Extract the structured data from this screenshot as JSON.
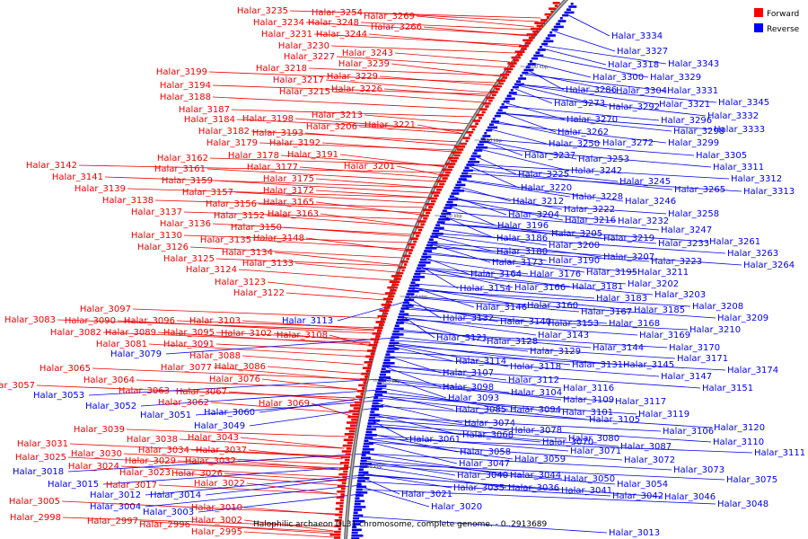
{
  "caption": "Halophilic archaeon DL31 chromosome, complete genome. - 0..2913689",
  "legend": [
    {
      "label": "Forward",
      "color": "#ff0000"
    },
    {
      "label": "Reverse",
      "color": "#0000ff"
    }
  ],
  "colors": {
    "forward": "#ee0000",
    "reverse": "#0000ee",
    "backbone": "#666666"
  },
  "ticks": [
    "2500 kbp",
    "2450 kbp",
    "2400 kbp",
    "2350 kbp",
    "2300 kbp",
    "2250 kbp"
  ],
  "forward_labels": [
    "Halar_3235",
    "Halar_3254",
    "Halar_3269",
    "Halar_3234",
    "Halar_3248",
    "Halar_3266",
    "Halar_3231",
    "Halar_3244",
    "Halar_3230",
    "Halar_3243",
    "Halar_3227",
    "Halar_3239",
    "Halar_3218",
    "Halar_3229",
    "Halar_3199",
    "Halar_3217",
    "Halar_3226",
    "Halar_3194",
    "Halar_3215",
    "Halar_3188",
    "Halar_3187",
    "Halar_3213",
    "Halar_3184",
    "Halar_3198",
    "Halar_3206",
    "Halar_3221",
    "Halar_3182",
    "Halar_3193",
    "Halar_3179",
    "Halar_3192",
    "Halar_3178",
    "Halar_3191",
    "Halar_3162",
    "Halar_3201",
    "Halar_3177",
    "Halar_3161",
    "Halar_3142",
    "Halar_3175",
    "Halar_3141",
    "Halar_3159",
    "Halar_3172",
    "Halar_3139",
    "Halar_3157",
    "Halar_3165",
    "Halar_3138",
    "Halar_3156",
    "Halar_3152",
    "Halar_3163",
    "Halar_3137",
    "Halar_3150",
    "Halar_3136",
    "Halar_3148",
    "Halar_3130",
    "Halar_3135",
    "Halar_3126",
    "Halar_3134",
    "Halar_3125",
    "Halar_3133",
    "Halar_3124",
    "Halar_3123",
    "Halar_3122",
    "Halar_3097",
    "Halar_3083",
    "Halar_3090",
    "Halar_3096",
    "Halar_3103",
    "Halar_3082",
    "Halar_3089",
    "Halar_3095",
    "Halar_3102",
    "Halar_3108",
    "Halar_3081",
    "Halar_3091",
    "Halar_3088",
    "Halar_3065",
    "Halar_3077",
    "Halar_3086",
    "Halar_3064",
    "Halar_3076",
    "Halar_3057",
    "Halar_3063",
    "Halar_3067",
    "Halar_3062",
    "Halar_3069",
    "Halar_3039",
    "Halar_3038",
    "Halar_3043",
    "Halar_3031",
    "Halar_3034",
    "Halar_3037",
    "Halar_3030",
    "Halar_3025",
    "Halar_3029",
    "Halar_3032",
    "Halar_3024",
    "Halar_3023",
    "Halar_3026",
    "Halar_3017",
    "Halar_3022",
    "Halar_3005",
    "Halar_3010",
    "Halar_2998",
    "Halar_3002",
    "Halar_2997",
    "Halar_2996",
    "Halar_2995"
  ],
  "reverse_labels": [
    "Halar_3334",
    "Halar_3327",
    "Halar_3343",
    "Halar_3318",
    "Halar_3300",
    "Halar_3329",
    "Halar_3286",
    "Halar_3304",
    "Halar_3331",
    "Halar_3273",
    "Halar_3292",
    "Halar_3321",
    "Halar_3345",
    "Halar_3270",
    "Halar_3296",
    "Halar_3332",
    "Halar_3262",
    "Halar_3298",
    "Halar_3333",
    "Halar_3250",
    "Halar_3272",
    "Halar_3299",
    "Halar_3253",
    "Halar_3305",
    "Halar_3237",
    "Halar_3242",
    "Halar_3311",
    "Halar_3225",
    "Halar_3245",
    "Halar_3312",
    "Halar_3220",
    "Halar_3265",
    "Halar_3313",
    "Halar_3228",
    "Halar_3212",
    "Halar_3246",
    "Halar_3222",
    "Halar_3204",
    "Halar_3232",
    "Halar_3258",
    "Halar_3216",
    "Halar_3196",
    "Halar_3247",
    "Halar_3205",
    "Halar_3219",
    "Halar_3186",
    "Halar_3233",
    "Halar_3261",
    "Halar_3200",
    "Halar_3180",
    "Halar_3207",
    "Halar_3263",
    "Halar_3173",
    "Halar_3190",
    "Halar_3223",
    "Halar_3264",
    "Halar_3195",
    "Halar_3211",
    "Halar_3164",
    "Halar_3176",
    "Halar_3154",
    "Halar_3166",
    "Halar_3181",
    "Halar_3202",
    "Halar_3183",
    "Halar_3203",
    "Halar_3146",
    "Halar_3160",
    "Halar_3208",
    "Halar_3167",
    "Halar_3185",
    "Halar_3132",
    "Halar_3140",
    "Halar_3153",
    "Halar_3168",
    "Halar_3209",
    "Halar_3113",
    "Halar_3143",
    "Halar_3169",
    "Halar_3210",
    "Halar_3121",
    "Halar_3128",
    "Halar_3144",
    "Halar_3170",
    "Halar_3129",
    "Halar_3131",
    "Halar_3145",
    "Halar_3171",
    "Halar_3079",
    "Halar_3114",
    "Halar_3118",
    "Halar_3147",
    "Halar_3174",
    "Halar_3107",
    "Halar_3112",
    "Halar_3151",
    "Halar_3098",
    "Halar_3116",
    "Halar_3053",
    "Halar_3104",
    "Halar_3093",
    "Halar_3109",
    "Halar_3117",
    "Halar_3052",
    "Halar_3085",
    "Halar_3094",
    "Halar_3101",
    "Halar_3119",
    "Halar_3060",
    "Halar_3051",
    "Halar_3105",
    "Halar_3074",
    "Halar_3049",
    "Halar_3078",
    "Halar_3106",
    "Halar_3120",
    "Halar_3068",
    "Halar_3061",
    "Halar_3070",
    "Halar_3080",
    "Halar_3110",
    "Halar_3087",
    "Halar_3058",
    "Halar_3071",
    "Halar_3111",
    "Halar_3047",
    "Halar_3059",
    "Halar_3072",
    "Halar_3073",
    "Halar_3040",
    "Halar_3044",
    "Halar_3050",
    "Halar_3018",
    "Halar_3075",
    "Halar_3035",
    "Halar_3036",
    "Halar_3054",
    "Halar_3015",
    "Halar_3041",
    "Halar_3042",
    "Halar_3046",
    "Halar_3012",
    "Halar_3014",
    "Halar_3021",
    "Halar_3048",
    "Halar_3004",
    "Halar_3020",
    "Halar_3003",
    "Halar_3013"
  ]
}
